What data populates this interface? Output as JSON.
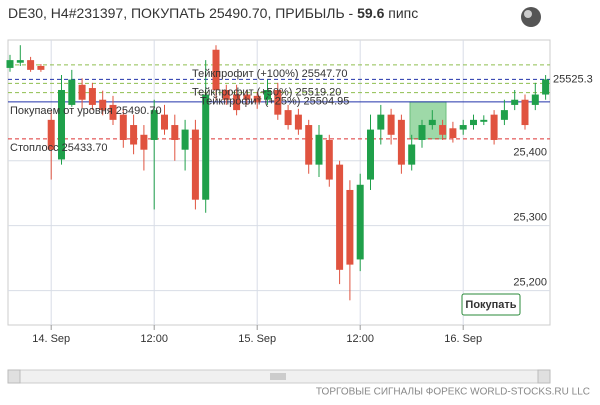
{
  "chart_data": {
    "type": "candlestick",
    "title": "DE30, H4#231397, ПОКУПАТЬ 25490.70, ПРИБЫЛЬ -",
    "profit": "59.6",
    "profit_unit": "пипс",
    "categories": [
      null,
      null,
      null,
      null,
      "14. Sep",
      null,
      null,
      null,
      null,
      null,
      null,
      null,
      null,
      null,
      "12:00",
      null,
      null,
      null,
      null,
      null,
      null,
      null,
      null,
      null,
      "15. Sep",
      null,
      null,
      null,
      null,
      null,
      null,
      null,
      null,
      null,
      "12:00",
      null,
      null,
      null,
      null,
      null,
      null,
      null,
      null,
      null,
      "16. Sep",
      null,
      null,
      null,
      null,
      null,
      null,
      null,
      null
    ],
    "series": [
      {
        "name": "open",
        "values": [
          25543,
          25551,
          25555,
          25546,
          25463,
          25402,
          25486,
          25517,
          25512,
          25494,
          25486,
          25471,
          25455,
          25440,
          25432,
          25471,
          25455,
          25417,
          25448,
          25340,
          25571,
          25509,
          25502,
          25502,
          25500,
          25494,
          25509,
          25478,
          25471,
          25455,
          25394,
          25432,
          25394,
          25355,
          25248,
          25371,
          25448,
          25471,
          25463,
          25394,
          25432,
          25455,
          25455,
          25450,
          25448,
          25455,
          25460,
          25471,
          25463,
          25486,
          25494,
          25486,
          25502
        ]
      },
      {
        "name": "high",
        "values": [
          25563,
          25578,
          25560,
          25549,
          25478,
          25532,
          25540,
          25527,
          25520,
          25508,
          25500,
          25480,
          25471,
          25455,
          25494,
          25486,
          25471,
          25463,
          25463,
          25555,
          25578,
          25517,
          25517,
          25509,
          25506,
          25525,
          25520,
          25486,
          25480,
          25463,
          25455,
          25440,
          25400,
          25370,
          25380,
          25471,
          25486,
          25480,
          25471,
          25440,
          25463,
          25478,
          25463,
          25460,
          25463,
          25471,
          25470,
          25478,
          25494,
          25509,
          25502,
          25520,
          25532
        ]
      },
      {
        "name": "low",
        "values": [
          25537,
          25546,
          25537,
          25537,
          25371,
          25394,
          25483,
          25480,
          25478,
          25470,
          25455,
          25420,
          25410,
          25385,
          25325,
          25440,
          25400,
          25385,
          25325,
          25320,
          25494,
          25486,
          25470,
          25486,
          25480,
          25486,
          25463,
          25448,
          25440,
          25380,
          25375,
          25360,
          25210,
          25185,
          25230,
          25355,
          25425,
          25425,
          25380,
          25385,
          25420,
          25448,
          25432,
          25428,
          25440,
          25448,
          25455,
          25425,
          25455,
          25478,
          25448,
          25478,
          25494
        ]
      },
      {
        "name": "close",
        "values": [
          25555,
          25555,
          25540,
          25540,
          25417,
          25509,
          25525,
          25494,
          25486,
          25478,
          25463,
          25432,
          25425,
          25417,
          25478,
          25448,
          25432,
          25448,
          25340,
          25502,
          25509,
          25494,
          25478,
          25494,
          25490,
          25509,
          25471,
          25455,
          25448,
          25394,
          25440,
          25371,
          25232,
          25240,
          25363,
          25448,
          25471,
          25440,
          25394,
          25425,
          25455,
          25463,
          25440,
          25435,
          25455,
          25463,
          25463,
          25432,
          25478,
          25494,
          25455,
          25502,
          25525.3
        ]
      }
    ],
    "up_color": "#1fa04a",
    "down_color": "#e0533f",
    "ylim": [
      25147,
      25586
    ],
    "yticks": [
      {
        "value": 25200,
        "label": "25,200"
      },
      {
        "value": 25300,
        "label": "25,300"
      },
      {
        "value": 25400,
        "label": "25,400"
      }
    ],
    "current_price": {
      "value": 25525.3,
      "label": "25525.3",
      "color": "#2233aa"
    },
    "levels": [
      {
        "label": "Тейкпрофит (+100%) 25547.70",
        "value": 25547.7,
        "color": "#8fbf4f",
        "dashed": true
      },
      {
        "label": "Тейкпрофит (+50%) 25519.20",
        "value": 25519.2,
        "color": "#8fbf4f",
        "dashed": true
      },
      {
        "label": "Тейкпрофит (+25%) 25504.95",
        "value": 25504.95,
        "color": "#8fbf4f",
        "dashed": true
      },
      {
        "label": "Покупаем от уровня 25490.70",
        "value": 25490.7,
        "color": "#2233aa",
        "dashed": false
      },
      {
        "label": "Стоплосс 25433.70",
        "value": 25433.7,
        "color": "#dd3333",
        "dashed": true
      }
    ],
    "grid": true,
    "button": "Покупать",
    "footer": "ТОРГОВЫЕ СИГНАЛЫ ФОРЕКС WORLD-STOCKS.RU LLC"
  }
}
